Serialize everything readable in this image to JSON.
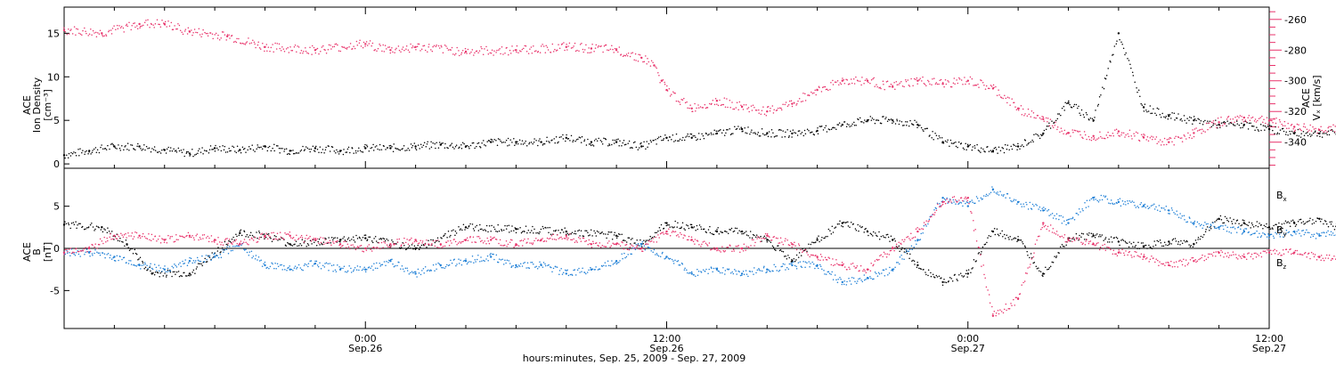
{
  "x_axis": {
    "title": "hours:minutes, Sep. 25, 2009 - Sep. 27, 2009",
    "range_hours": [
      -12,
      36
    ],
    "ticks": [
      {
        "h": 0,
        "time": "0:00",
        "date": "Sep.26"
      },
      {
        "h": 12,
        "time": "12:00",
        "date": "Sep.26"
      },
      {
        "h": 24,
        "time": "0:00",
        "date": "Sep.27"
      },
      {
        "h": 36,
        "time": "12:00",
        "date": "Sep.27"
      }
    ]
  },
  "colors": {
    "black": "#000000",
    "pink": "#e8336b",
    "blue": "#1e7fd6"
  },
  "chart_data": [
    {
      "type": "scatter",
      "panel": "top",
      "ylabel_left": [
        "ACE",
        "Ion Density",
        "[cm⁻³]"
      ],
      "ylabel_right": [
        "ACE",
        "Vₓ [km/s]"
      ],
      "yleft_range": [
        -0.5,
        18
      ],
      "yleft_ticks": [
        0,
        5,
        10,
        15
      ],
      "yright_range": [
        -357,
        -252
      ],
      "yright_ticks": [
        -260,
        -280,
        -300,
        -320,
        -340
      ],
      "series": [
        {
          "name": "",
          "color": "black",
          "axis": "left",
          "x": [
            -12.0,
            -11.0,
            -10.0,
            -9.0,
            -8.0,
            -7.0,
            -6.0,
            -5.0,
            -4.0,
            -3.0,
            -2.0,
            -1.0,
            0.0,
            1.0,
            2.0,
            3.0,
            4.0,
            5.0,
            6.0,
            7.0,
            8.0,
            9.0,
            10.0,
            11.0,
            12.0,
            13.0,
            14.0,
            15.0,
            16.0,
            17.0,
            18.0,
            19.0,
            20.0,
            21.0,
            22.0,
            23.0,
            24.0,
            25.0,
            26.0,
            27.0,
            28.0,
            29.0,
            30.0,
            31.0,
            32.0,
            33.0,
            34.0,
            35.0,
            36.0,
            37.0,
            38.0,
            38.7
          ],
          "y": [
            1.0,
            1.5,
            2.0,
            2.0,
            1.6,
            1.2,
            1.8,
            1.6,
            2.0,
            1.5,
            1.8,
            1.5,
            1.8,
            1.8,
            2.0,
            2.2,
            2.0,
            2.5,
            2.5,
            2.5,
            3.0,
            2.5,
            2.5,
            2.0,
            3.0,
            3.0,
            3.5,
            4.0,
            3.5,
            3.5,
            3.8,
            4.5,
            5.0,
            5.0,
            4.5,
            2.5,
            2.0,
            1.5,
            2.0,
            3.5,
            7.0,
            5.0,
            15.0,
            6.5,
            5.5,
            5.0,
            4.5,
            4.5,
            4.0,
            3.5,
            3.5,
            3.5
          ]
        },
        {
          "name": "",
          "color": "pink",
          "axis": "right",
          "x": [
            -12.0,
            -10.5,
            -9.0,
            -8.0,
            -7.0,
            -5.5,
            -4.0,
            -2.0,
            0.0,
            1.0,
            2.0,
            4.0,
            6.0,
            8.0,
            9.0,
            10.0,
            11.0,
            11.5,
            11.8,
            12.0,
            13.0,
            14.0,
            15.0,
            16.0,
            17.0,
            18.0,
            19.0,
            20.0,
            21.0,
            22.0,
            23.0,
            24.0,
            25.0,
            26.0,
            27.0,
            28.0,
            29.0,
            30.0,
            31.0,
            32.0,
            33.0,
            34.0,
            35.0,
            36.0,
            37.0,
            38.0,
            38.7
          ],
          "y": [
            -267,
            -269,
            -263,
            -263,
            -268,
            -271,
            -278,
            -280,
            -276,
            -280,
            -278,
            -281,
            -280,
            -278,
            -279,
            -280,
            -285,
            -290,
            -300,
            -306,
            -318,
            -313,
            -317,
            -320,
            -315,
            -306,
            -300,
            -300,
            -304,
            -300,
            -302,
            -300,
            -305,
            -318,
            -325,
            -334,
            -336,
            -333,
            -337,
            -340,
            -334,
            -327,
            -324,
            -326,
            -330,
            -332,
            -330
          ]
        }
      ]
    },
    {
      "type": "scatter",
      "panel": "bottom",
      "ylabel_left": [
        "ACE",
        "B",
        "[nT]"
      ],
      "y_range": [
        -9.5,
        9.5
      ],
      "y_ticks": [
        -5,
        0,
        5
      ],
      "legend": [
        {
          "label": "B",
          "sub": "x",
          "color": "black"
        },
        {
          "label": "B",
          "sub": "y",
          "color": "blue"
        },
        {
          "label": "B",
          "sub": "z",
          "color": "pink"
        }
      ],
      "series": [
        {
          "name": "Bx",
          "color": "black",
          "x": [
            -12.0,
            -10.5,
            -9.5,
            -8.5,
            -7.0,
            -5.0,
            -4.0,
            -3.0,
            -1.0,
            0.0,
            2.0,
            4.0,
            6.0,
            8.0,
            10.0,
            11.0,
            12.0,
            13.0,
            14.0,
            15.0,
            16.0,
            17.0,
            18.0,
            19.0,
            20.0,
            21.0,
            22.0,
            23.0,
            24.0,
            25.0,
            26.0,
            27.0,
            28.0,
            29.0,
            30.0,
            31.0,
            32.0,
            33.0,
            34.0,
            35.0,
            36.0,
            37.0,
            38.0,
            38.7
          ],
          "y": [
            2.8,
            2.5,
            0.5,
            -3.0,
            -3.0,
            1.8,
            1.5,
            0.5,
            1.0,
            1.2,
            0.0,
            2.5,
            2.3,
            2.0,
            1.5,
            0.5,
            3.0,
            2.5,
            2.0,
            2.0,
            1.0,
            -1.5,
            1.0,
            3.0,
            2.0,
            1.0,
            -2.0,
            -4.0,
            -3.0,
            2.0,
            1.0,
            -3.0,
            1.2,
            1.5,
            0.8,
            0.2,
            0.8,
            0.5,
            3.5,
            3.0,
            2.5,
            3.0,
            3.5,
            2.5
          ]
        },
        {
          "name": "By",
          "color": "blue",
          "x": [
            -12.0,
            -11.0,
            -10.0,
            -9.0,
            -8.0,
            -7.0,
            -6.0,
            -5.0,
            -4.0,
            -3.0,
            -2.0,
            -1.0,
            0.0,
            1.0,
            2.0,
            3.0,
            4.0,
            5.0,
            6.0,
            7.0,
            8.0,
            9.0,
            10.0,
            11.0,
            12.0,
            13.0,
            14.0,
            15.0,
            16.0,
            17.0,
            18.0,
            19.0,
            20.0,
            21.0,
            22.0,
            23.0,
            24.0,
            25.0,
            26.0,
            27.0,
            28.0,
            29.0,
            30.0,
            31.0,
            32.0,
            33.0,
            34.0,
            35.0,
            36.0,
            37.0,
            38.0,
            38.7
          ],
          "y": [
            -0.5,
            -0.5,
            -1.0,
            -2.0,
            -2.5,
            -1.5,
            -1.0,
            0.5,
            -2.0,
            -2.5,
            -1.8,
            -2.5,
            -2.5,
            -1.5,
            -3.0,
            -2.0,
            -1.5,
            -1.0,
            -2.0,
            -2.0,
            -3.0,
            -2.5,
            -1.5,
            0.5,
            -1.0,
            -3.0,
            -2.5,
            -3.0,
            -2.5,
            -2.0,
            -2.0,
            -4.0,
            -3.5,
            -2.5,
            1.0,
            6.0,
            5.0,
            7.0,
            5.5,
            4.5,
            3.0,
            6.0,
            5.5,
            5.0,
            4.5,
            3.0,
            2.5,
            2.0,
            1.5,
            2.0,
            1.5,
            2.0
          ]
        },
        {
          "name": "Bz",
          "color": "pink",
          "x": [
            -12.0,
            -11.0,
            -10.0,
            -9.0,
            -8.0,
            -7.0,
            -6.0,
            -5.0,
            -4.0,
            -3.0,
            -2.0,
            -1.0,
            0.0,
            1.0,
            2.0,
            3.0,
            4.0,
            5.0,
            6.0,
            7.0,
            8.0,
            9.0,
            10.0,
            11.0,
            12.0,
            13.0,
            14.0,
            15.0,
            16.0,
            17.0,
            18.0,
            19.0,
            20.0,
            21.0,
            22.0,
            23.0,
            24.0,
            25.0,
            26.0,
            27.0,
            28.0,
            29.0,
            30.0,
            31.0,
            32.0,
            33.0,
            34.0,
            35.0,
            36.0,
            37.0,
            38.0,
            38.7
          ],
          "y": [
            -0.5,
            0.0,
            1.5,
            1.5,
            1.0,
            1.5,
            1.0,
            0.5,
            1.5,
            1.5,
            1.0,
            0.5,
            0.0,
            0.5,
            1.0,
            0.5,
            1.0,
            1.0,
            0.5,
            1.0,
            1.5,
            0.5,
            0.5,
            0.0,
            2.0,
            1.0,
            0.0,
            0.0,
            1.5,
            0.5,
            -1.0,
            -2.0,
            -2.5,
            0.0,
            2.0,
            5.5,
            6.0,
            -8.0,
            -6.0,
            3.0,
            1.0,
            0.5,
            -0.5,
            -1.0,
            -2.0,
            -1.5,
            -0.5,
            -1.0,
            -0.5,
            -0.5,
            -1.0,
            -1.0
          ]
        }
      ]
    }
  ]
}
